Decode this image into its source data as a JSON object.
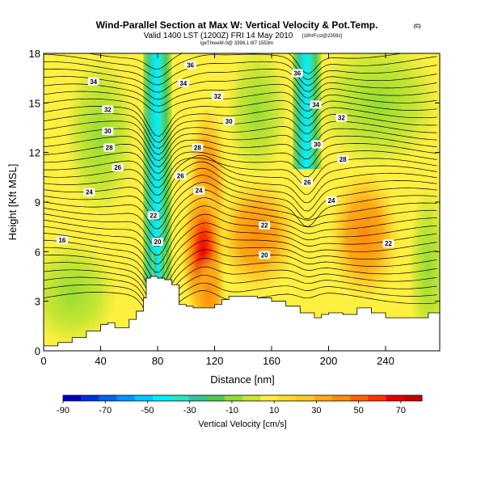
{
  "chart_data": {
    "type": "heatmap",
    "title": "Wind-Parallel Section at Max W: Vertical Velocity & Pot.Temp.",
    "copyright": "(C)",
    "subtitle": "Valid 1400 LST (1200Z) FRI 14 May 2010",
    "subtitle_note": "[18hrFcst@2359z]",
    "source_line": "lgeThreeM-0@ 3398,1 t87 1553m",
    "xlabel": "Distance [nm]",
    "ylabel": "Height [Kft MSL]",
    "xlim": [
      0,
      278
    ],
    "ylim": [
      0,
      18
    ],
    "x_ticks": [
      0,
      40,
      80,
      120,
      160,
      200,
      240
    ],
    "y_ticks": [
      0,
      3,
      6,
      9,
      12,
      15,
      18
    ],
    "colorbar": {
      "label": "Vertical Velocity [cm/s]",
      "range": [
        -90,
        80
      ],
      "tick_values": [
        -90,
        -70,
        -50,
        -30,
        -10,
        10,
        30,
        50,
        70
      ],
      "colors": [
        "#0000c8",
        "#0032dc",
        "#0064f0",
        "#0096ff",
        "#00c8ff",
        "#00f0ff",
        "#28e6c8",
        "#32c896",
        "#50c850",
        "#96dc32",
        "#c8e632",
        "#fff040",
        "#ffdc28",
        "#ffc81e",
        "#ffaa14",
        "#ff8c0a",
        "#ff6400",
        "#ff3200",
        "#e60000",
        "#c80000"
      ]
    },
    "vertical_velocity_features": [
      {
        "x": 77,
        "z": 12,
        "w": -40
      },
      {
        "x": 83,
        "z": 9,
        "w": -30
      },
      {
        "x": 79,
        "z": 5,
        "w": -15
      },
      {
        "x": 112,
        "z": 6.5,
        "w": 65
      },
      {
        "x": 115,
        "z": 3.5,
        "w": 35
      },
      {
        "x": 183,
        "z": 15,
        "w": -35
      },
      {
        "x": 25,
        "z": 4,
        "w": -10
      },
      {
        "x": 150,
        "z": 7,
        "w": 30
      },
      {
        "x": 225,
        "z": 7,
        "w": 30
      }
    ],
    "theta_contour_levels": [
      18,
      20,
      22,
      24,
      26,
      28,
      30,
      32,
      34,
      36
    ],
    "contour_labels": [
      {
        "text": "16",
        "x": 13,
        "z": 6.7
      },
      {
        "text": "20",
        "x": 80,
        "z": 6.6
      },
      {
        "text": "22",
        "x": 77,
        "z": 8.2
      },
      {
        "text": "24",
        "x": 32,
        "z": 9.6
      },
      {
        "text": "26",
        "x": 52,
        "z": 11.1
      },
      {
        "text": "28",
        "x": 46,
        "z": 12.3
      },
      {
        "text": "30",
        "x": 45,
        "z": 13.3
      },
      {
        "text": "32",
        "x": 45,
        "z": 14.6
      },
      {
        "text": "34",
        "x": 35,
        "z": 16.3
      },
      {
        "text": "36",
        "x": 103,
        "z": 17.3
      },
      {
        "text": "34",
        "x": 98,
        "z": 16.2
      },
      {
        "text": "32",
        "x": 122,
        "z": 15.4
      },
      {
        "text": "30",
        "x": 130,
        "z": 13.9
      },
      {
        "text": "28",
        "x": 108,
        "z": 12.3
      },
      {
        "text": "26",
        "x": 96,
        "z": 10.6
      },
      {
        "text": "24",
        "x": 109,
        "z": 9.7
      },
      {
        "text": "22",
        "x": 155,
        "z": 7.6
      },
      {
        "text": "20",
        "x": 155,
        "z": 5.8
      },
      {
        "text": "36",
        "x": 178,
        "z": 16.8
      },
      {
        "text": "34",
        "x": 191,
        "z": 14.9
      },
      {
        "text": "32",
        "x": 209,
        "z": 14.1
      },
      {
        "text": "30",
        "x": 192,
        "z": 12.5
      },
      {
        "text": "28",
        "x": 210,
        "z": 11.6
      },
      {
        "text": "26",
        "x": 185,
        "z": 10.2
      },
      {
        "text": "24",
        "x": 202,
        "z": 9.1
      },
      {
        "text": "22",
        "x": 242,
        "z": 6.5
      }
    ],
    "terrain": {
      "x": [
        0,
        10,
        20,
        30,
        40,
        45,
        50,
        55,
        60,
        65,
        70,
        72,
        75,
        80,
        85,
        90,
        95,
        100,
        105,
        110,
        120,
        125,
        130,
        140,
        150,
        160,
        170,
        180,
        190,
        195,
        200,
        210,
        220,
        230,
        240,
        250,
        260,
        270,
        278
      ],
      "z": [
        0.3,
        0.5,
        0.8,
        1.2,
        1.6,
        1.7,
        1.4,
        1.4,
        1.9,
        2.4,
        3.2,
        4.4,
        4.5,
        4.4,
        4.3,
        4.0,
        2.8,
        2.7,
        2.6,
        2.6,
        2.8,
        3.1,
        3.3,
        3.3,
        3.2,
        3.0,
        2.7,
        2.3,
        2.0,
        2.2,
        2.3,
        2.2,
        2.6,
        2.3,
        2.0,
        2.0,
        2.0,
        2.3,
        2.3
      ]
    }
  }
}
